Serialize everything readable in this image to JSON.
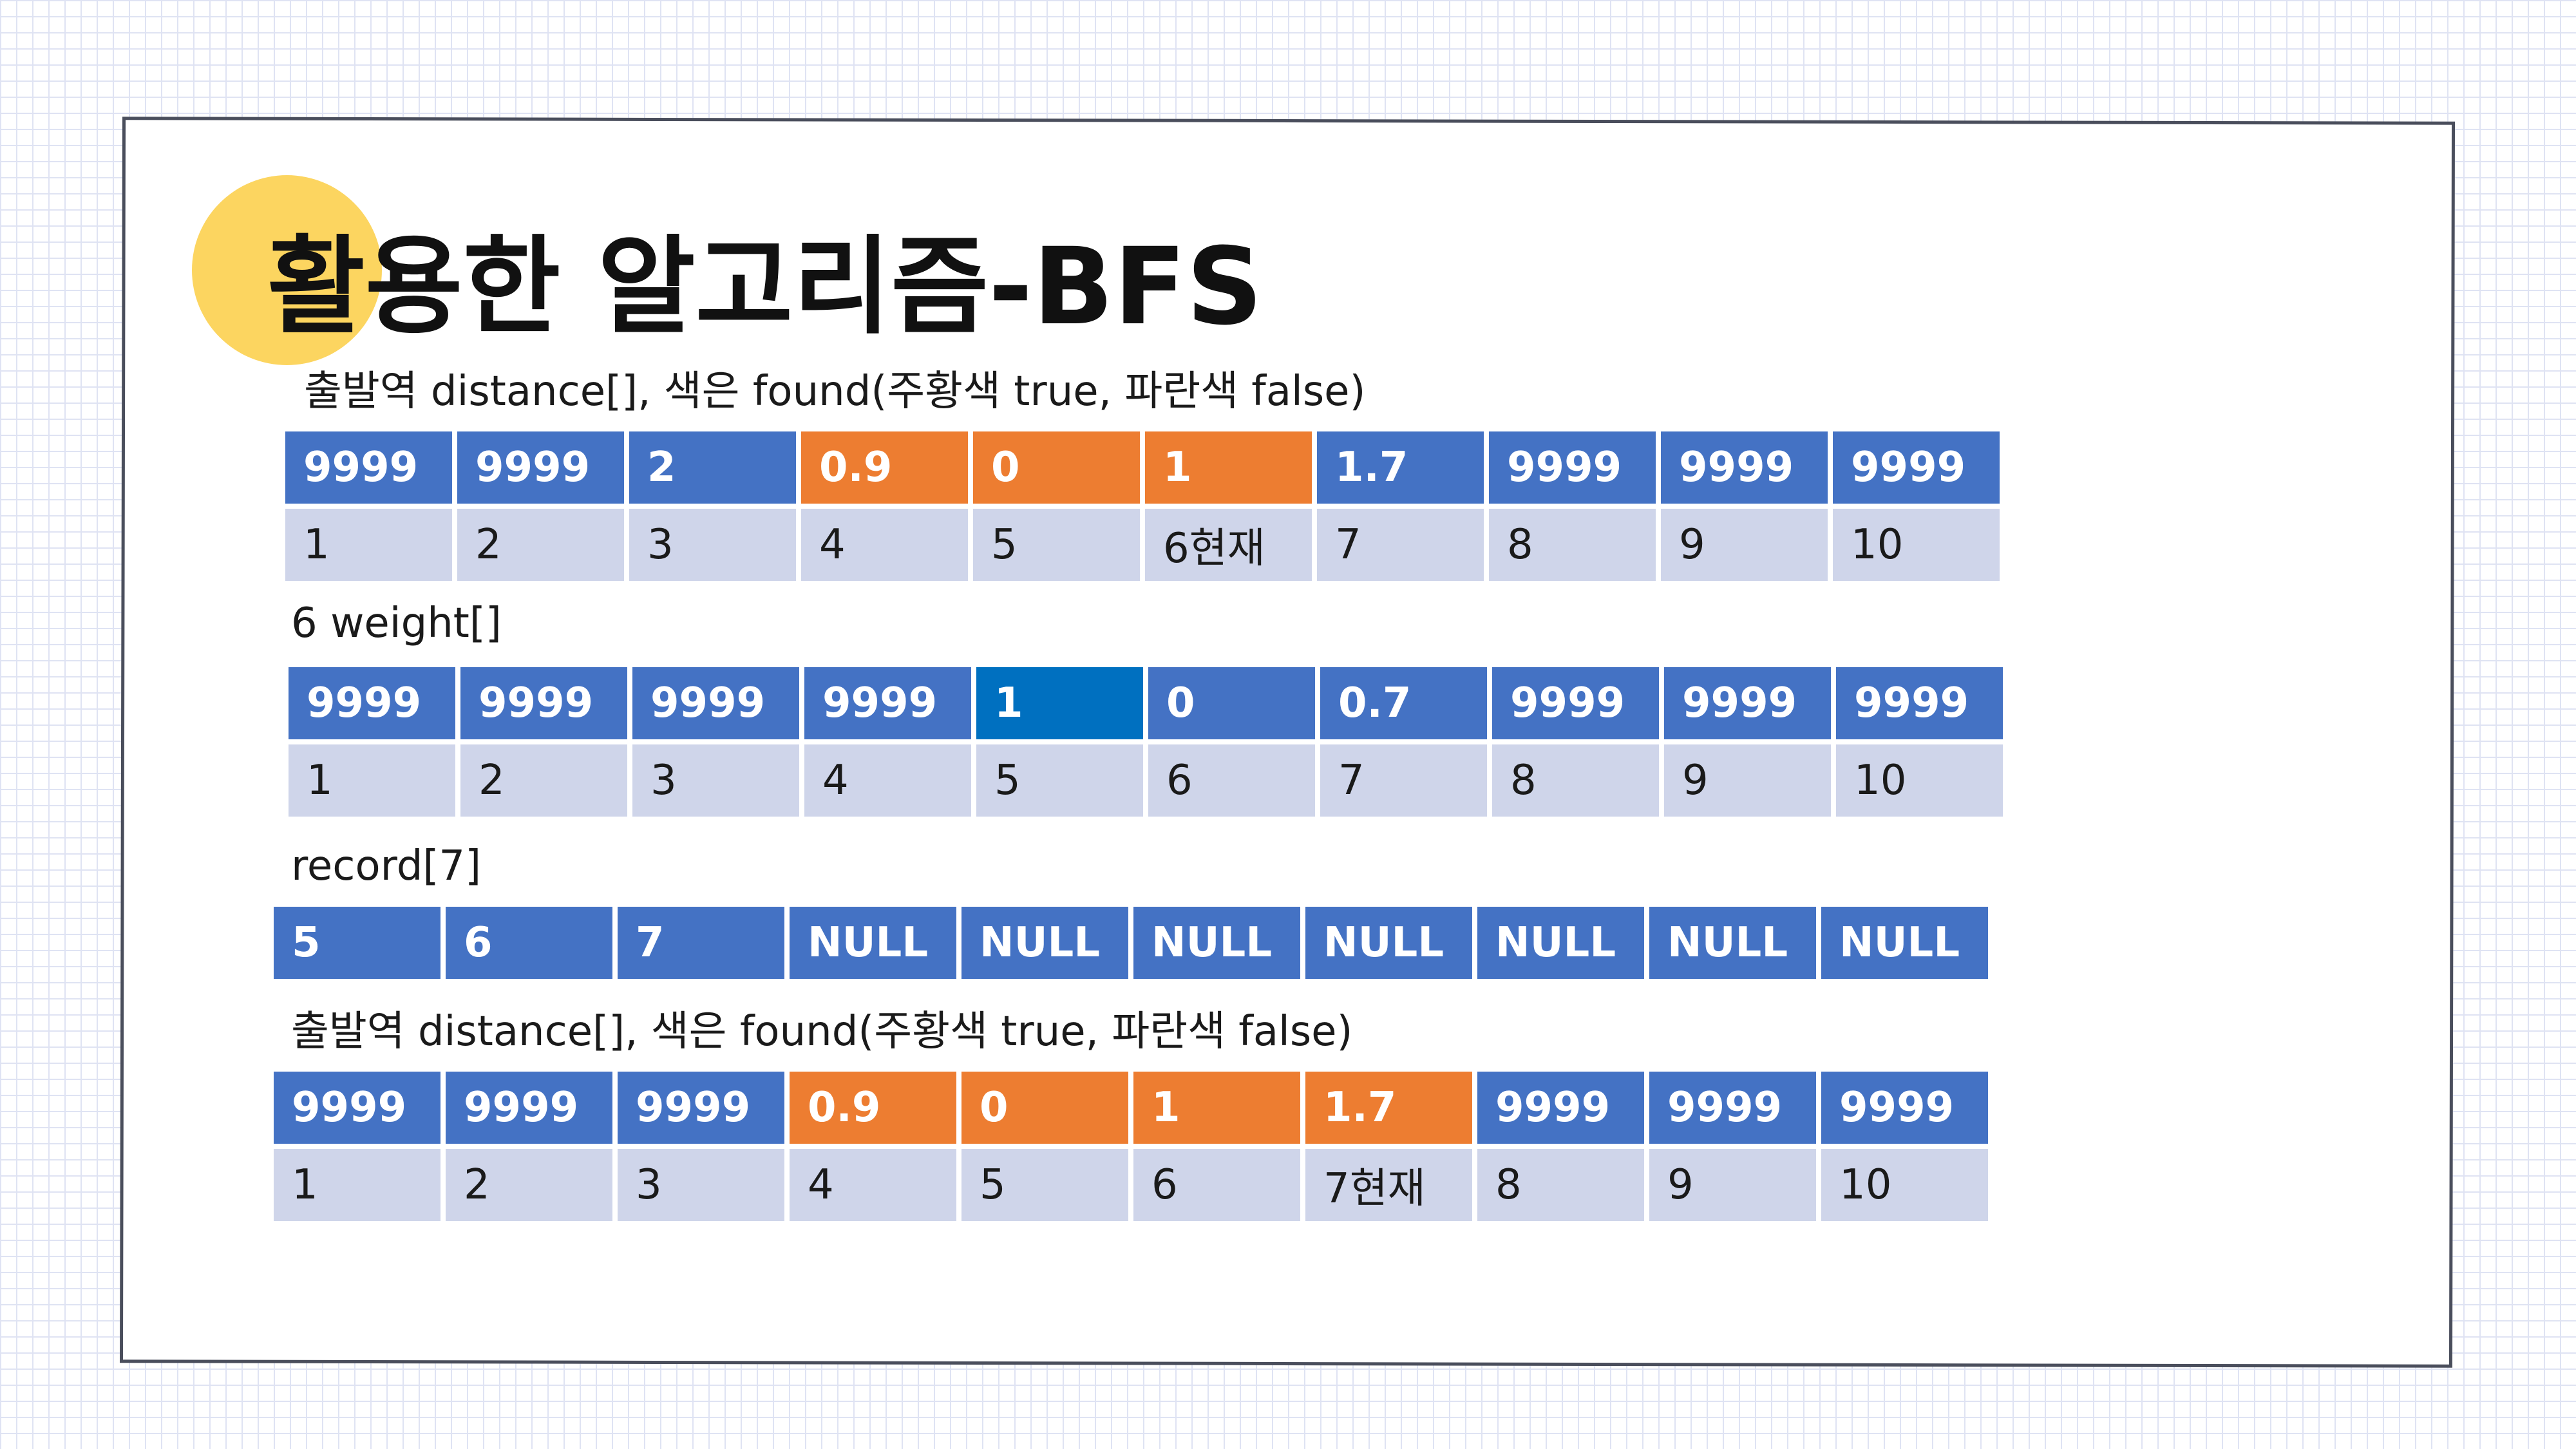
{
  "title": "활용한 알고리즘-BFS",
  "colors": {
    "default": "#4472c4",
    "found": "#ed7d31",
    "highlight": "#0070c0",
    "index_bg": "#cfd5ea"
  },
  "sections": [
    {
      "label": "출발역 distance[], 색은 found(주황색 true, 파란색 false)",
      "values": [
        {
          "text": "9999",
          "state": "default"
        },
        {
          "text": "9999",
          "state": "default"
        },
        {
          "text": "2",
          "state": "default"
        },
        {
          "text": "0.9",
          "state": "found"
        },
        {
          "text": "0",
          "state": "found"
        },
        {
          "text": "1",
          "state": "found"
        },
        {
          "text": "1.7",
          "state": "default"
        },
        {
          "text": "9999",
          "state": "default"
        },
        {
          "text": "9999",
          "state": "default"
        },
        {
          "text": "9999",
          "state": "default"
        }
      ],
      "indices": [
        "1",
        "2",
        "3",
        "4",
        "5",
        "6현재",
        "7",
        "8",
        "9",
        "10"
      ]
    },
    {
      "label": "6 weight[]",
      "values": [
        {
          "text": "9999",
          "state": "default"
        },
        {
          "text": "9999",
          "state": "default"
        },
        {
          "text": "9999",
          "state": "default"
        },
        {
          "text": "9999",
          "state": "default"
        },
        {
          "text": "1",
          "state": "highlight"
        },
        {
          "text": "0",
          "state": "default"
        },
        {
          "text": "0.7",
          "state": "default"
        },
        {
          "text": "9999",
          "state": "default"
        },
        {
          "text": "9999",
          "state": "default"
        },
        {
          "text": "9999",
          "state": "default"
        }
      ],
      "indices": [
        "1",
        "2",
        "3",
        "4",
        "5",
        "6",
        "7",
        "8",
        "9",
        "10"
      ]
    },
    {
      "label": "record[7]",
      "values": [
        {
          "text": "5",
          "state": "default"
        },
        {
          "text": "6",
          "state": "default"
        },
        {
          "text": "7",
          "state": "default"
        },
        {
          "text": "NULL",
          "state": "default"
        },
        {
          "text": "NULL",
          "state": "default"
        },
        {
          "text": "NULL",
          "state": "default"
        },
        {
          "text": "NULL",
          "state": "default"
        },
        {
          "text": "NULL",
          "state": "default"
        },
        {
          "text": "NULL",
          "state": "default"
        },
        {
          "text": "NULL",
          "state": "default"
        }
      ],
      "indices": []
    },
    {
      "label": "출발역 distance[], 색은 found(주황색 true, 파란색 false)",
      "values": [
        {
          "text": "9999",
          "state": "default"
        },
        {
          "text": "9999",
          "state": "default"
        },
        {
          "text": "9999",
          "state": "default"
        },
        {
          "text": "0.9",
          "state": "found"
        },
        {
          "text": "0",
          "state": "found"
        },
        {
          "text": "1",
          "state": "found"
        },
        {
          "text": "1.7",
          "state": "found"
        },
        {
          "text": "9999",
          "state": "default"
        },
        {
          "text": "9999",
          "state": "default"
        },
        {
          "text": "9999",
          "state": "default"
        }
      ],
      "indices": [
        "1",
        "2",
        "3",
        "4",
        "5",
        "6",
        "7현재",
        "8",
        "9",
        "10"
      ]
    }
  ]
}
